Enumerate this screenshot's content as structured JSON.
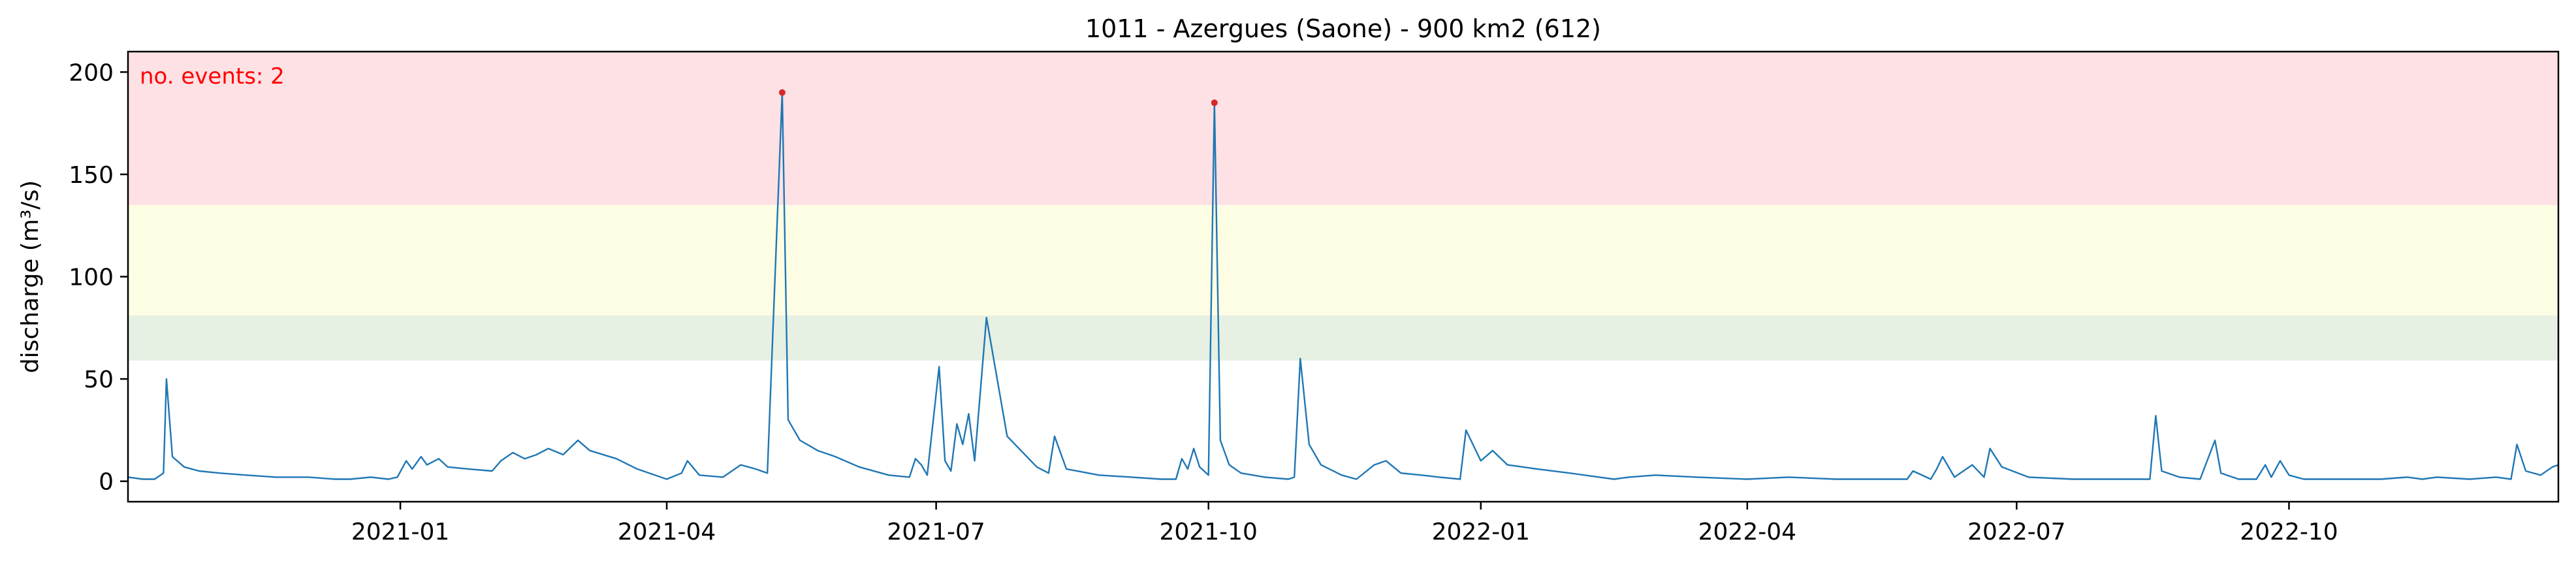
{
  "chart_data": {
    "type": "line",
    "title": "1011 - Azergues (Saone) - 900 km2 (612)",
    "ylabel": "discharge (m³/s)",
    "xlabel": "",
    "annotation": "no. events: 2",
    "x_range": [
      "2020-10-01",
      "2022-12-31"
    ],
    "ylim": [
      -10,
      210
    ],
    "y_ticks": [
      0,
      50,
      100,
      150,
      200
    ],
    "x_ticks": [
      {
        "label": "2021-01",
        "date": "2021-01-01"
      },
      {
        "label": "2021-04",
        "date": "2021-04-01"
      },
      {
        "label": "2021-07",
        "date": "2021-07-01"
      },
      {
        "label": "2021-10",
        "date": "2021-10-01"
      },
      {
        "label": "2022-01",
        "date": "2022-01-01"
      },
      {
        "label": "2022-04",
        "date": "2022-04-01"
      },
      {
        "label": "2022-07",
        "date": "2022-07-01"
      },
      {
        "label": "2022-10",
        "date": "2022-10-01"
      }
    ],
    "bands": [
      {
        "from": 59,
        "to": 81,
        "color": "#e6f0e3"
      },
      {
        "from": 81,
        "to": 135,
        "color": "#fdfde3"
      },
      {
        "from": 135,
        "to": 210,
        "color": "#fee1e4"
      }
    ],
    "line_color": "#1f77b4",
    "event_color": "#d62728",
    "events": [
      {
        "x": "2021-05-10",
        "y": 190
      },
      {
        "x": "2021-10-03",
        "y": 185
      }
    ],
    "series": [
      {
        "x": [
          "2020-10-01",
          "2020-10-06",
          "2020-10-10",
          "2020-10-13",
          "2020-10-14",
          "2020-10-16",
          "2020-10-20",
          "2020-10-25",
          "2020-11-01",
          "2020-11-10",
          "2020-11-20",
          "2020-12-01",
          "2020-12-10",
          "2020-12-15",
          "2020-12-22",
          "2020-12-28",
          "2020-12-31",
          "2021-01-03",
          "2021-01-05",
          "2021-01-08",
          "2021-01-10",
          "2021-01-14",
          "2021-01-17",
          "2021-01-24",
          "2021-02-01",
          "2021-02-04",
          "2021-02-08",
          "2021-02-12",
          "2021-02-16",
          "2021-02-20",
          "2021-02-25",
          "2021-03-02",
          "2021-03-06",
          "2021-03-15",
          "2021-03-22",
          "2021-03-28",
          "2021-04-01",
          "2021-04-06",
          "2021-04-08",
          "2021-04-12",
          "2021-04-20",
          "2021-04-26",
          "2021-05-01",
          "2021-05-05",
          "2021-05-10",
          "2021-05-12",
          "2021-05-16",
          "2021-05-22",
          "2021-05-28",
          "2021-06-05",
          "2021-06-15",
          "2021-06-22",
          "2021-06-24",
          "2021-06-26",
          "2021-06-28",
          "2021-07-02",
          "2021-07-04",
          "2021-07-06",
          "2021-07-08",
          "2021-07-10",
          "2021-07-12",
          "2021-07-14",
          "2021-07-18",
          "2021-07-25",
          "2021-08-04",
          "2021-08-08",
          "2021-08-10",
          "2021-08-14",
          "2021-08-25",
          "2021-09-05",
          "2021-09-15",
          "2021-09-20",
          "2021-09-22",
          "2021-09-24",
          "2021-09-26",
          "2021-09-28",
          "2021-10-01",
          "2021-10-03",
          "2021-10-05",
          "2021-10-08",
          "2021-10-12",
          "2021-10-20",
          "2021-10-28",
          "2021-10-30",
          "2021-11-01",
          "2021-11-04",
          "2021-11-08",
          "2021-11-15",
          "2021-11-20",
          "2021-11-26",
          "2021-11-30",
          "2021-12-05",
          "2021-12-12",
          "2021-12-18",
          "2021-12-25",
          "2021-12-27",
          "2022-01-01",
          "2022-01-05",
          "2022-01-10",
          "2022-01-20",
          "2022-01-31",
          "2022-02-10",
          "2022-02-15",
          "2022-02-20",
          "2022-03-01",
          "2022-03-15",
          "2022-04-01",
          "2022-04-15",
          "2022-05-01",
          "2022-05-15",
          "2022-05-25",
          "2022-05-27",
          "2022-06-02",
          "2022-06-04",
          "2022-06-06",
          "2022-06-10",
          "2022-06-16",
          "2022-06-20",
          "2022-06-22",
          "2022-06-26",
          "2022-07-05",
          "2022-07-20",
          "2022-08-01",
          "2022-08-15",
          "2022-08-17",
          "2022-08-19",
          "2022-08-25",
          "2022-09-01",
          "2022-09-06",
          "2022-09-08",
          "2022-09-14",
          "2022-09-20",
          "2022-09-23",
          "2022-09-25",
          "2022-09-28",
          "2022-10-01",
          "2022-10-06",
          "2022-10-12",
          "2022-10-20",
          "2022-11-01",
          "2022-11-10",
          "2022-11-15",
          "2022-11-20",
          "2022-12-01",
          "2022-12-10",
          "2022-12-15",
          "2022-12-17",
          "2022-12-20",
          "2022-12-25",
          "2022-12-29",
          "2022-12-31"
        ],
        "y": [
          2,
          1,
          1,
          4,
          50,
          12,
          7,
          5,
          4,
          3,
          2,
          2,
          1,
          1,
          2,
          1,
          2,
          10,
          6,
          12,
          8,
          11,
          7,
          6,
          5,
          10,
          14,
          11,
          13,
          16,
          13,
          20,
          15,
          11,
          6,
          3,
          1,
          4,
          10,
          3,
          2,
          8,
          6,
          4,
          190,
          30,
          20,
          15,
          12,
          7,
          3,
          2,
          11,
          8,
          3,
          56,
          10,
          5,
          28,
          18,
          33,
          10,
          80,
          22,
          7,
          4,
          22,
          6,
          3,
          2,
          1,
          1,
          11,
          6,
          16,
          7,
          3,
          185,
          20,
          8,
          4,
          2,
          1,
          2,
          60,
          18,
          8,
          3,
          1,
          8,
          10,
          4,
          3,
          2,
          1,
          25,
          10,
          15,
          8,
          6,
          4,
          2,
          1,
          2,
          3,
          2,
          1,
          2,
          1,
          1,
          1,
          5,
          1,
          6,
          12,
          2,
          8,
          2,
          16,
          7,
          2,
          1,
          1,
          1,
          32,
          5,
          2,
          1,
          20,
          4,
          1,
          1,
          8,
          2,
          10,
          3,
          1,
          1,
          1,
          1,
          2,
          1,
          2,
          1,
          2,
          1,
          18,
          5,
          3,
          7,
          8
        ]
      }
    ]
  }
}
